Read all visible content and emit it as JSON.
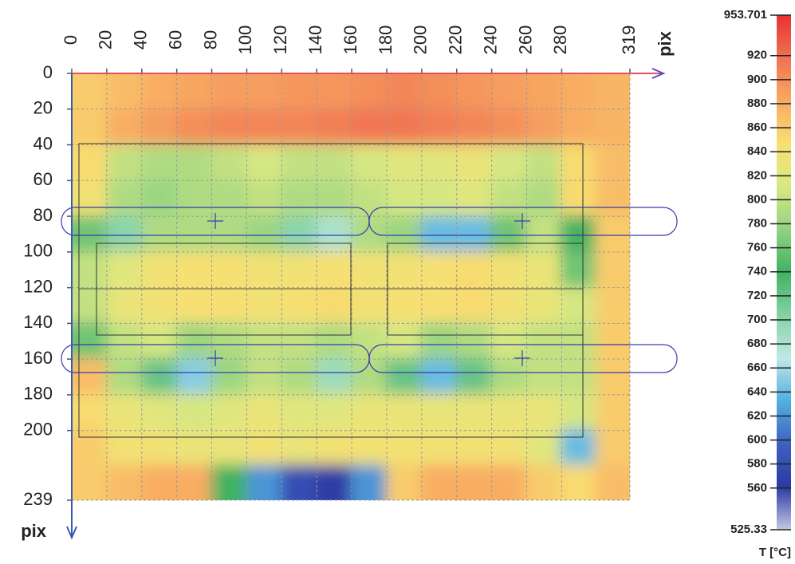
{
  "chart_data": {
    "type": "heatmap",
    "x_label": "pix",
    "y_label": "pix",
    "xlim": [
      0,
      319
    ],
    "ylim": [
      0,
      239
    ],
    "xticks": [
      0,
      20,
      40,
      60,
      80,
      100,
      120,
      140,
      160,
      180,
      200,
      220,
      240,
      260,
      280,
      319
    ],
    "yticks": [
      0,
      20,
      40,
      60,
      80,
      100,
      120,
      140,
      160,
      180,
      200,
      239
    ],
    "grid": true,
    "clim": [
      525.33,
      953.701
    ],
    "cticks": [
      560,
      580,
      600,
      620,
      640,
      660,
      680,
      700,
      720,
      740,
      760,
      780,
      800,
      820,
      840,
      860,
      880,
      900,
      920
    ],
    "colorbar_label": "T [°C]",
    "colormap": [
      "#c4c8e6",
      "#2a3aa2",
      "#3f60c0",
      "#52b0e0",
      "#c0e8e6",
      "#84d2a4",
      "#42b262",
      "#92d282",
      "#d8e882",
      "#f8e072",
      "#f8aa62",
      "#f07252",
      "#e83232"
    ],
    "z": [
      [
        860,
        870,
        880,
        885,
        890,
        890,
        895,
        895,
        900,
        905,
        900,
        895,
        890,
        885,
        880,
        875
      ],
      [
        860,
        880,
        890,
        900,
        905,
        905,
        905,
        910,
        915,
        915,
        910,
        905,
        900,
        890,
        880,
        875
      ],
      [
        850,
        800,
        790,
        790,
        800,
        810,
        800,
        800,
        810,
        820,
        820,
        830,
        810,
        800,
        850,
        870
      ],
      [
        840,
        790,
        780,
        790,
        790,
        800,
        790,
        790,
        800,
        810,
        810,
        820,
        800,
        790,
        850,
        870
      ],
      [
        760,
        700,
        790,
        790,
        790,
        780,
        700,
        680,
        790,
        780,
        640,
        640,
        760,
        800,
        740,
        860
      ],
      [
        800,
        820,
        840,
        845,
        845,
        840,
        840,
        845,
        840,
        840,
        845,
        850,
        840,
        830,
        760,
        860
      ],
      [
        800,
        830,
        840,
        845,
        845,
        840,
        845,
        850,
        840,
        845,
        845,
        850,
        840,
        830,
        810,
        860
      ],
      [
        760,
        800,
        810,
        780,
        790,
        800,
        800,
        790,
        800,
        810,
        780,
        790,
        810,
        800,
        800,
        860
      ],
      [
        870,
        790,
        720,
        650,
        780,
        800,
        790,
        690,
        790,
        720,
        640,
        720,
        790,
        800,
        800,
        860
      ],
      [
        850,
        830,
        820,
        810,
        820,
        830,
        820,
        820,
        830,
        830,
        830,
        830,
        830,
        830,
        810,
        860
      ],
      [
        860,
        840,
        840,
        830,
        830,
        840,
        830,
        840,
        840,
        840,
        840,
        840,
        840,
        820,
        640,
        860
      ],
      [
        860,
        870,
        880,
        880,
        740,
        620,
        580,
        560,
        620,
        860,
        880,
        880,
        880,
        860,
        850,
        870
      ]
    ]
  }
}
